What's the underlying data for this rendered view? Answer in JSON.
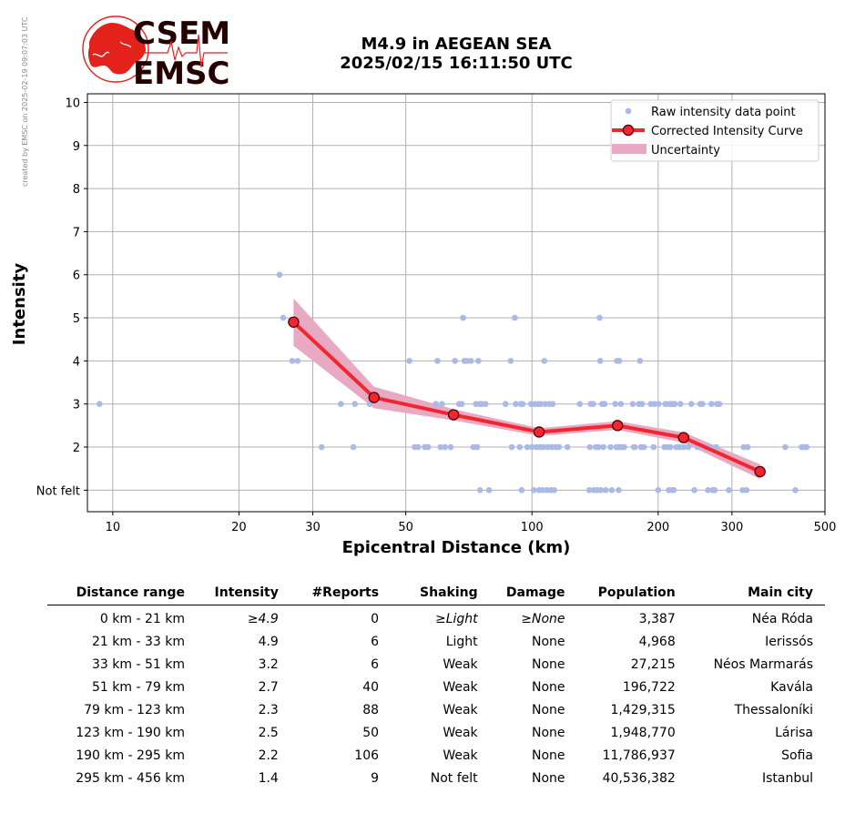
{
  "watermark": "created by EMSC on 2025-02-19 09:07:03 UTC",
  "logo": {
    "top": "CSEM",
    "bottom": "EMSC"
  },
  "title": {
    "line1": "M4.9 in AEGEAN SEA",
    "line2": "2025/02/15 16:11:50 UTC"
  },
  "colors": {
    "raw": "#aab9e6",
    "curve": "#f2262e",
    "marker_edge": "#400000",
    "uncertainty": "#e8a9c3",
    "logo_red": "#e3221c",
    "logo_dark": "#250000"
  },
  "chart_data": {
    "type": "scatter",
    "title": "M4.9 in AEGEAN SEA 2025/02/15 16:11:50 UTC",
    "xlabel": "Epicentral Distance (km)",
    "ylabel": "Intensity",
    "x_scale": "log",
    "xlim": [
      8.7,
      500
    ],
    "ylim": [
      0.5,
      10.2
    ],
    "x_ticks": [
      10,
      20,
      30,
      50,
      100,
      200,
      300,
      500
    ],
    "y_ticks": [
      1,
      2,
      3,
      4,
      5,
      6,
      7,
      8,
      9,
      10
    ],
    "y_tick_labels": [
      "Not felt",
      "2",
      "3",
      "4",
      "5",
      "6",
      "7",
      "8",
      "9",
      "10"
    ],
    "grid": true,
    "legend_position": "top-right",
    "legend": [
      "Raw intensity data point",
      "Corrected Intensity Curve",
      "Uncertainty"
    ],
    "corrected_curve": {
      "name": "Corrected Intensity Curve",
      "x": [
        27,
        42,
        65,
        104,
        160,
        230,
        350
      ],
      "y": [
        4.9,
        3.15,
        2.75,
        2.35,
        2.5,
        2.22,
        1.43
      ]
    },
    "uncertainty": {
      "name": "Uncertainty",
      "x": [
        27,
        42,
        65,
        104,
        160,
        230,
        350
      ],
      "upper": [
        5.45,
        3.4,
        2.88,
        2.44,
        2.6,
        2.34,
        1.6
      ],
      "lower": [
        4.35,
        2.9,
        2.62,
        2.26,
        2.4,
        2.1,
        1.26
      ]
    },
    "raw_points": {
      "name": "Raw intensity data point",
      "points": [
        [
          9.3,
          3
        ],
        [
          25,
          6
        ],
        [
          25.5,
          5
        ],
        [
          26.8,
          4
        ],
        [
          27.6,
          4
        ],
        [
          31.5,
          2
        ],
        [
          35,
          3
        ],
        [
          37.5,
          2
        ],
        [
          37.8,
          3
        ],
        [
          41,
          3
        ],
        [
          51,
          4
        ],
        [
          52.5,
          2
        ],
        [
          53.5,
          2
        ],
        [
          55.5,
          2
        ],
        [
          56.5,
          2
        ],
        [
          59,
          3
        ],
        [
          59.5,
          4
        ],
        [
          60.5,
          2
        ],
        [
          61,
          3
        ],
        [
          62,
          2
        ],
        [
          64,
          2
        ],
        [
          65.5,
          4
        ],
        [
          67,
          3
        ],
        [
          68,
          3
        ],
        [
          68.5,
          5
        ],
        [
          69,
          4
        ],
        [
          70,
          4
        ],
        [
          71.5,
          4
        ],
        [
          72.5,
          2
        ],
        [
          73.5,
          3
        ],
        [
          74,
          2
        ],
        [
          74.5,
          4
        ],
        [
          75,
          3
        ],
        [
          75.2,
          1
        ],
        [
          76,
          3
        ],
        [
          77.5,
          3
        ],
        [
          79,
          1
        ],
        [
          86.5,
          3
        ],
        [
          89,
          4
        ],
        [
          89.5,
          2
        ],
        [
          91,
          5
        ],
        [
          91.5,
          3
        ],
        [
          93.5,
          2
        ],
        [
          94,
          3
        ],
        [
          94.5,
          1
        ],
        [
          95,
          3
        ],
        [
          97.5,
          2
        ],
        [
          99.5,
          3
        ],
        [
          100,
          2
        ],
        [
          101,
          1
        ],
        [
          101.5,
          3
        ],
        [
          102.5,
          2
        ],
        [
          103.5,
          3
        ],
        [
          104,
          1
        ],
        [
          104.5,
          2
        ],
        [
          105,
          3
        ],
        [
          106,
          1
        ],
        [
          106.5,
          2
        ],
        [
          107,
          4
        ],
        [
          107.5,
          3
        ],
        [
          108.5,
          1
        ],
        [
          109,
          2
        ],
        [
          110,
          3
        ],
        [
          111,
          1
        ],
        [
          111.5,
          2
        ],
        [
          112,
          3
        ],
        [
          113,
          1
        ],
        [
          114,
          2
        ],
        [
          116,
          2
        ],
        [
          121.5,
          2
        ],
        [
          130,
          3
        ],
        [
          137,
          1
        ],
        [
          137.5,
          2
        ],
        [
          138,
          3
        ],
        [
          140,
          3
        ],
        [
          140.5,
          1
        ],
        [
          142,
          2
        ],
        [
          143,
          1
        ],
        [
          144,
          2
        ],
        [
          145,
          5
        ],
        [
          145.5,
          4
        ],
        [
          146,
          1
        ],
        [
          147,
          3
        ],
        [
          148,
          2
        ],
        [
          149,
          3
        ],
        [
          150,
          1
        ],
        [
          154,
          2
        ],
        [
          155,
          1
        ],
        [
          158,
          3
        ],
        [
          159,
          2
        ],
        [
          159.5,
          4
        ],
        [
          160,
          2
        ],
        [
          161,
          1
        ],
        [
          161.5,
          4
        ],
        [
          162,
          2
        ],
        [
          163,
          3
        ],
        [
          164,
          2
        ],
        [
          166,
          2
        ],
        [
          174,
          3
        ],
        [
          175,
          2
        ],
        [
          176,
          2
        ],
        [
          180,
          3
        ],
        [
          181,
          4
        ],
        [
          182,
          2
        ],
        [
          183,
          3
        ],
        [
          185,
          2
        ],
        [
          192,
          3
        ],
        [
          195,
          2
        ],
        [
          196,
          3
        ],
        [
          200,
          1
        ],
        [
          200.5,
          3
        ],
        [
          207,
          2
        ],
        [
          208,
          3
        ],
        [
          209,
          3
        ],
        [
          211,
          2
        ],
        [
          212,
          1
        ],
        [
          213,
          3
        ],
        [
          214,
          2
        ],
        [
          215,
          3
        ],
        [
          216,
          1
        ],
        [
          217,
          3
        ],
        [
          218,
          1
        ],
        [
          219,
          3
        ],
        [
          221,
          2
        ],
        [
          225,
          2
        ],
        [
          226,
          3
        ],
        [
          230,
          2
        ],
        [
          236,
          2
        ],
        [
          240,
          3
        ],
        [
          244,
          1
        ],
        [
          248,
          2
        ],
        [
          252,
          3
        ],
        [
          255,
          3
        ],
        [
          258,
          2
        ],
        [
          263,
          1
        ],
        [
          265,
          2
        ],
        [
          268,
          3
        ],
        [
          270,
          1
        ],
        [
          273,
          1
        ],
        [
          275,
          2
        ],
        [
          276,
          3
        ],
        [
          280,
          3
        ],
        [
          295,
          1
        ],
        [
          318,
          1
        ],
        [
          320,
          2
        ],
        [
          325,
          1
        ],
        [
          327,
          2
        ],
        [
          402,
          2
        ],
        [
          425,
          1
        ],
        [
          440,
          2
        ],
        [
          447,
          2
        ],
        [
          452,
          2
        ]
      ]
    }
  },
  "table": {
    "headers": [
      "Distance range",
      "Intensity",
      "#Reports",
      "Shaking",
      "Damage",
      "Population",
      "Main city"
    ],
    "rows": [
      {
        "range": "0 km -   21 km",
        "intensity": "≥4.9",
        "reports": "0",
        "shaking": "≥Light",
        "damage": "≥None",
        "population": "3,387",
        "city": "Néa Róda"
      },
      {
        "range": "21 km -   33 km",
        "intensity": "4.9",
        "reports": "6",
        "shaking": "Light",
        "damage": "None",
        "population": "4,968",
        "city": "Ierissós"
      },
      {
        "range": "33 km -   51 km",
        "intensity": "3.2",
        "reports": "6",
        "shaking": "Weak",
        "damage": "None",
        "population": "27,215",
        "city": "Néos Marmarás"
      },
      {
        "range": "51 km -   79 km",
        "intensity": "2.7",
        "reports": "40",
        "shaking": "Weak",
        "damage": "None",
        "population": "196,722",
        "city": "Kavála"
      },
      {
        "range": "79 km -  123 km",
        "intensity": "2.3",
        "reports": "88",
        "shaking": "Weak",
        "damage": "None",
        "population": "1,429,315",
        "city": "Thessaloníki"
      },
      {
        "range": "123 km -  190 km",
        "intensity": "2.5",
        "reports": "50",
        "shaking": "Weak",
        "damage": "None",
        "population": "1,948,770",
        "city": "Lárisa"
      },
      {
        "range": "190 km -  295 km",
        "intensity": "2.2",
        "reports": "106",
        "shaking": "Weak",
        "damage": "None",
        "population": "11,786,937",
        "city": "Sofia"
      },
      {
        "range": "295 km -  456 km",
        "intensity": "1.4",
        "reports": "9",
        "shaking": "Not felt",
        "damage": "None",
        "population": "40,536,382",
        "city": "Istanbul"
      }
    ]
  }
}
